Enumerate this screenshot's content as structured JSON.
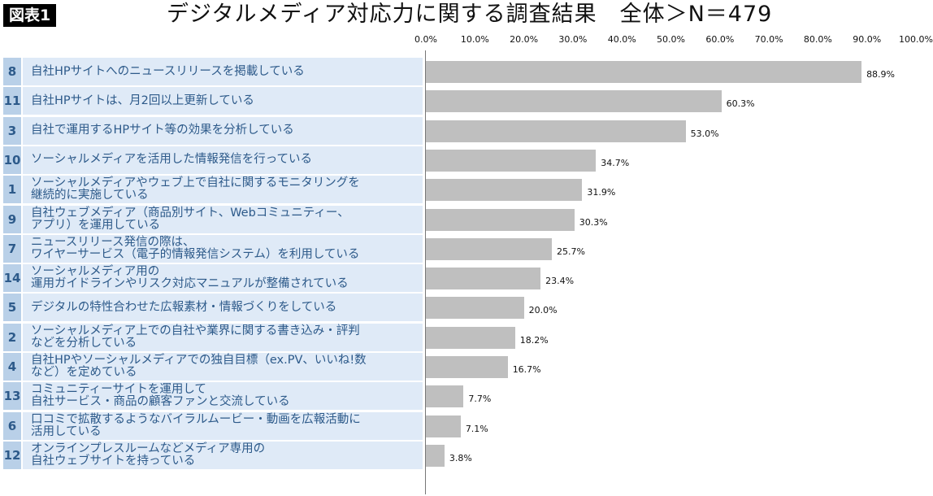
{
  "badge": "図表1",
  "title": "デジタルメディア対応力に関する調査結果　全体＞N＝479",
  "chart_data": {
    "type": "bar",
    "orientation": "horizontal",
    "xlim": [
      0,
      100
    ],
    "ticks": [
      "0.0%",
      "10.0%",
      "20.0%",
      "30.0%",
      "40.0%",
      "50.0%",
      "60.0%",
      "70.0%",
      "80.0%",
      "90.0%",
      "100.0%"
    ],
    "items": [
      {
        "no": "8",
        "label": "自社HPサイトへのニュースリリースを掲載している",
        "value": 88.9,
        "value_label": "88.9%"
      },
      {
        "no": "11",
        "label": "自社HPサイトは、月2回以上更新している",
        "value": 60.3,
        "value_label": "60.3%"
      },
      {
        "no": "3",
        "label": "自社で運用するHPサイト等の効果を分析している",
        "value": 53.0,
        "value_label": "53.0%"
      },
      {
        "no": "10",
        "label": "ソーシャルメディアを活用した情報発信を行っている",
        "value": 34.7,
        "value_label": "34.7%"
      },
      {
        "no": "1",
        "label": "ソーシャルメディアやウェブ上で自社に関するモニタリングを\n継続的に実施している",
        "value": 31.9,
        "value_label": "31.9%"
      },
      {
        "no": "9",
        "label": "自社ウェブメディア（商品別サイト、Webコミュニティー、\nアプリ）を運用している",
        "value": 30.3,
        "value_label": "30.3%"
      },
      {
        "no": "7",
        "label": "ニュースリリース発信の際は、\nワイヤーサービス（電子的情報発信システム）を利用している",
        "value": 25.7,
        "value_label": "25.7%"
      },
      {
        "no": "14",
        "label": "ソーシャルメディア用の\n運用ガイドラインやリスク対応マニュアルが整備されている",
        "value": 23.4,
        "value_label": "23.4%"
      },
      {
        "no": "5",
        "label": "デジタルの特性合わせた広報素材・情報づくりをしている",
        "value": 20.0,
        "value_label": "20.0%"
      },
      {
        "no": "2",
        "label": "ソーシャルメディア上での自社や業界に関する書き込み・評判\nなどを分析している",
        "value": 18.2,
        "value_label": "18.2%"
      },
      {
        "no": "4",
        "label": "自社HPやソーシャルメディアでの独自目標（ex.PV、いいね!数\nなど）を定めている",
        "value": 16.7,
        "value_label": "16.7%"
      },
      {
        "no": "13",
        "label": "コミュニティーサイトを運用して\n自社サービス・商品の顧客ファンと交流している",
        "value": 7.7,
        "value_label": "7.7%"
      },
      {
        "no": "6",
        "label": "口コミで拡散するようなバイラルムービー・動画を広報活動に\n活用している",
        "value": 7.1,
        "value_label": "7.1%"
      },
      {
        "no": "12",
        "label": "オンラインプレスルームなどメディア専用の\n自社ウェブサイトを持っている",
        "value": 3.8,
        "value_label": "3.8%"
      }
    ],
    "colors": {
      "bar": "#bfbfbf",
      "number_cell": "#b9d0e8",
      "label_cell": "#dfeaf7",
      "label_text": "#2d5a8a"
    }
  }
}
